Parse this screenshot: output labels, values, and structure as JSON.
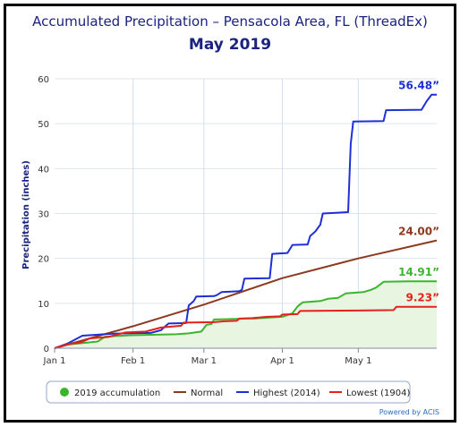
{
  "chart_data": {
    "type": "line",
    "title": "Accumulated Precipitation – Pensacola Area, FL (ThreadEx)",
    "subtitle": "May 2019",
    "ylabel": "Precipitation (inches)",
    "xlabel": "",
    "ylim": [
      0,
      60
    ],
    "yticks": [
      0,
      10,
      20,
      30,
      40,
      50,
      60
    ],
    "xlim_day": [
      0,
      151
    ],
    "xticks": [
      {
        "label": "Jan 1",
        "day": 0
      },
      {
        "label": "Feb 1",
        "day": 31
      },
      {
        "label": "Mar 1",
        "day": 59
      },
      {
        "label": "Apr 1",
        "day": 90
      },
      {
        "label": "May 1",
        "day": 120
      }
    ],
    "grid": true,
    "legend_position": "bottom",
    "series": [
      {
        "name": "2019 accumulation",
        "color": "#3cb52e",
        "fill": "#e8f5e0",
        "end_label": "14.91”",
        "points": [
          [
            0,
            0
          ],
          [
            2,
            0.3
          ],
          [
            5,
            0.8
          ],
          [
            8,
            1.0
          ],
          [
            12,
            1.2
          ],
          [
            17,
            1.5
          ],
          [
            20,
            2.6
          ],
          [
            30,
            2.9
          ],
          [
            40,
            3.0
          ],
          [
            48,
            3.1
          ],
          [
            53,
            3.3
          ],
          [
            58,
            3.7
          ],
          [
            60,
            5.2
          ],
          [
            62,
            5.4
          ],
          [
            63,
            6.4
          ],
          [
            70,
            6.5
          ],
          [
            76,
            6.6
          ],
          [
            79,
            6.6
          ],
          [
            84,
            6.8
          ],
          [
            90,
            7.0
          ],
          [
            94,
            7.8
          ],
          [
            96,
            9.3
          ],
          [
            98,
            10.2
          ],
          [
            105,
            10.5
          ],
          [
            108,
            11.0
          ],
          [
            112,
            11.2
          ],
          [
            115,
            12.2
          ],
          [
            122,
            12.5
          ],
          [
            125,
            13.0
          ],
          [
            127,
            13.5
          ],
          [
            130,
            14.8
          ],
          [
            140,
            14.91
          ],
          [
            151,
            14.91
          ]
        ]
      },
      {
        "name": "Normal",
        "color": "#8b3a1e",
        "end_label": "24.00”",
        "points": [
          [
            0,
            0
          ],
          [
            31,
            4.9
          ],
          [
            59,
            9.7
          ],
          [
            90,
            15.6
          ],
          [
            120,
            20.0
          ],
          [
            151,
            24.0
          ]
        ]
      },
      {
        "name": "Highest (2014)",
        "color": "#1e2fd6",
        "end_label": "56.48”",
        "points": [
          [
            0,
            0
          ],
          [
            5,
            1.0
          ],
          [
            11,
            2.8
          ],
          [
            17,
            3.0
          ],
          [
            22,
            3.2
          ],
          [
            28,
            3.3
          ],
          [
            38,
            3.4
          ],
          [
            42,
            4.0
          ],
          [
            45,
            5.5
          ],
          [
            52,
            5.6
          ],
          [
            53,
            9.5
          ],
          [
            55,
            10.5
          ],
          [
            56,
            11.5
          ],
          [
            63,
            11.6
          ],
          [
            64,
            11.8
          ],
          [
            66,
            12.5
          ],
          [
            73,
            12.7
          ],
          [
            74,
            13.0
          ],
          [
            75,
            15.5
          ],
          [
            85,
            15.6
          ],
          [
            86,
            21.0
          ],
          [
            92,
            21.2
          ],
          [
            94,
            23.0
          ],
          [
            100,
            23.1
          ],
          [
            101,
            25.0
          ],
          [
            103,
            26.0
          ],
          [
            105,
            27.5
          ],
          [
            106,
            30.0
          ],
          [
            116,
            30.3
          ],
          [
            117,
            45.5
          ],
          [
            118,
            50.5
          ],
          [
            130,
            50.6
          ],
          [
            131,
            53.0
          ],
          [
            145,
            53.1
          ],
          [
            147,
            55.0
          ],
          [
            149,
            56.48
          ],
          [
            151,
            56.48
          ]
        ]
      },
      {
        "name": "Lowest (1904)",
        "color": "#e4211c",
        "end_label": "9.23”",
        "points": [
          [
            0,
            0
          ],
          [
            6,
            1.0
          ],
          [
            10,
            1.2
          ],
          [
            14,
            2.2
          ],
          [
            21,
            2.5
          ],
          [
            28,
            3.5
          ],
          [
            36,
            3.7
          ],
          [
            42,
            4.6
          ],
          [
            50,
            5.0
          ],
          [
            51,
            5.7
          ],
          [
            63,
            5.8
          ],
          [
            67,
            6.0
          ],
          [
            72,
            6.1
          ],
          [
            73,
            6.6
          ],
          [
            78,
            6.7
          ],
          [
            84,
            7.0
          ],
          [
            89,
            7.1
          ],
          [
            90,
            7.5
          ],
          [
            96,
            7.6
          ],
          [
            97,
            8.3
          ],
          [
            120,
            8.4
          ],
          [
            134,
            8.5
          ],
          [
            135,
            9.23
          ],
          [
            151,
            9.23
          ]
        ]
      }
    ]
  },
  "footer": {
    "powered_by": "Powered by ACIS"
  }
}
